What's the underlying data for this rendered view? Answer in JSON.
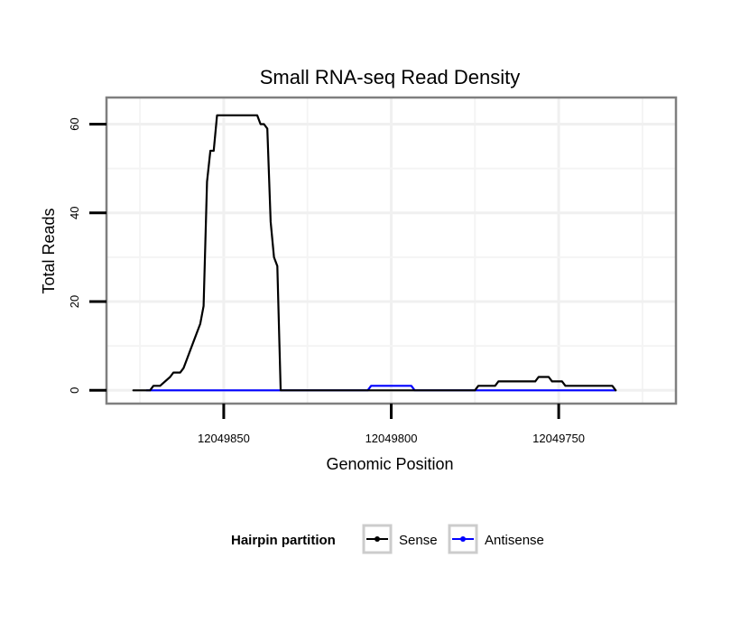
{
  "chart_data": {
    "type": "line",
    "title": "Small RNA-seq Read Density",
    "xlabel": "Genomic Position",
    "ylabel": "Total Reads",
    "x_reversed": true,
    "xlim": [
      12049885,
      12049715
    ],
    "ylim": [
      -3,
      66
    ],
    "xticks": [
      12049850,
      12049800,
      12049750
    ],
    "xtick_labels": [
      "12049850",
      "12049800",
      "12049750"
    ],
    "yticks": [
      0,
      20,
      40,
      60
    ],
    "ytick_labels": [
      "0",
      "20",
      "40",
      "60"
    ],
    "grid": true,
    "legend": {
      "title": "Hairpin partition",
      "position": "bottom",
      "entries": [
        {
          "name": "Sense",
          "color": "#000000"
        },
        {
          "name": "Antisense",
          "color": "#0000ff"
        }
      ]
    },
    "series": [
      {
        "name": "Sense",
        "color": "#000000",
        "points": [
          [
            12049877,
            0
          ],
          [
            12049872,
            0
          ],
          [
            12049871,
            1
          ],
          [
            12049869,
            1
          ],
          [
            12049866,
            3
          ],
          [
            12049865,
            4
          ],
          [
            12049863,
            4
          ],
          [
            12049862,
            5
          ],
          [
            12049861,
            7
          ],
          [
            12049860,
            9
          ],
          [
            12049859,
            11
          ],
          [
            12049858,
            13
          ],
          [
            12049857,
            15
          ],
          [
            12049856,
            19
          ],
          [
            12049855,
            47
          ],
          [
            12049854,
            54
          ],
          [
            12049853,
            54
          ],
          [
            12049852,
            62
          ],
          [
            12049840,
            62
          ],
          [
            12049839,
            60
          ],
          [
            12049838,
            60
          ],
          [
            12049837,
            59
          ],
          [
            12049836,
            38
          ],
          [
            12049835,
            30
          ],
          [
            12049834,
            28
          ],
          [
            12049833,
            0
          ],
          [
            12049775,
            0
          ],
          [
            12049774,
            1
          ],
          [
            12049769,
            1
          ],
          [
            12049768,
            2
          ],
          [
            12049757,
            2
          ],
          [
            12049756,
            3
          ],
          [
            12049753,
            3
          ],
          [
            12049752,
            2
          ],
          [
            12049749,
            2
          ],
          [
            12049748,
            1
          ],
          [
            12049734,
            1
          ],
          [
            12049733,
            0
          ]
        ]
      },
      {
        "name": "Antisense",
        "color": "#0000ff",
        "points": [
          [
            12049873,
            0
          ],
          [
            12049807,
            0
          ],
          [
            12049806,
            1
          ],
          [
            12049794,
            1
          ],
          [
            12049793,
            0
          ],
          [
            12049733,
            0
          ]
        ]
      }
    ]
  }
}
